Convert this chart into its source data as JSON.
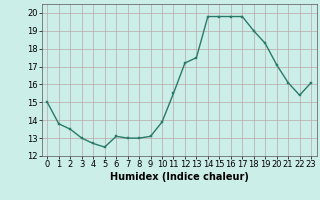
{
  "x": [
    0,
    1,
    2,
    3,
    4,
    5,
    6,
    7,
    8,
    9,
    10,
    11,
    12,
    13,
    14,
    15,
    16,
    17,
    18,
    19,
    20,
    21,
    22,
    23
  ],
  "y": [
    15.0,
    13.8,
    13.5,
    13.0,
    12.7,
    12.5,
    13.1,
    13.0,
    13.0,
    13.1,
    13.9,
    15.5,
    17.2,
    17.5,
    19.8,
    19.8,
    19.8,
    19.8,
    19.0,
    18.3,
    17.1,
    16.1,
    15.4,
    16.1
  ],
  "xlim": [
    -0.5,
    23.5
  ],
  "ylim": [
    12,
    20.5
  ],
  "yticks": [
    12,
    13,
    14,
    15,
    16,
    17,
    18,
    19,
    20
  ],
  "xtick_labels": [
    "0",
    "1",
    "2",
    "3",
    "4",
    "5",
    "6",
    "7",
    "8",
    "9",
    "10",
    "11",
    "12",
    "13",
    "14",
    "15",
    "16",
    "17",
    "18",
    "19",
    "20",
    "21",
    "22",
    "23"
  ],
  "xlabel": "Humidex (Indice chaleur)",
  "line_color": "#2a7a6a",
  "marker_color": "#2a7a6a",
  "bg_color": "#cceee8",
  "grid_color": "#b8a8a8",
  "xlabel_fontsize": 7,
  "tick_fontsize": 6,
  "linewidth": 1.0,
  "markersize": 2.0
}
